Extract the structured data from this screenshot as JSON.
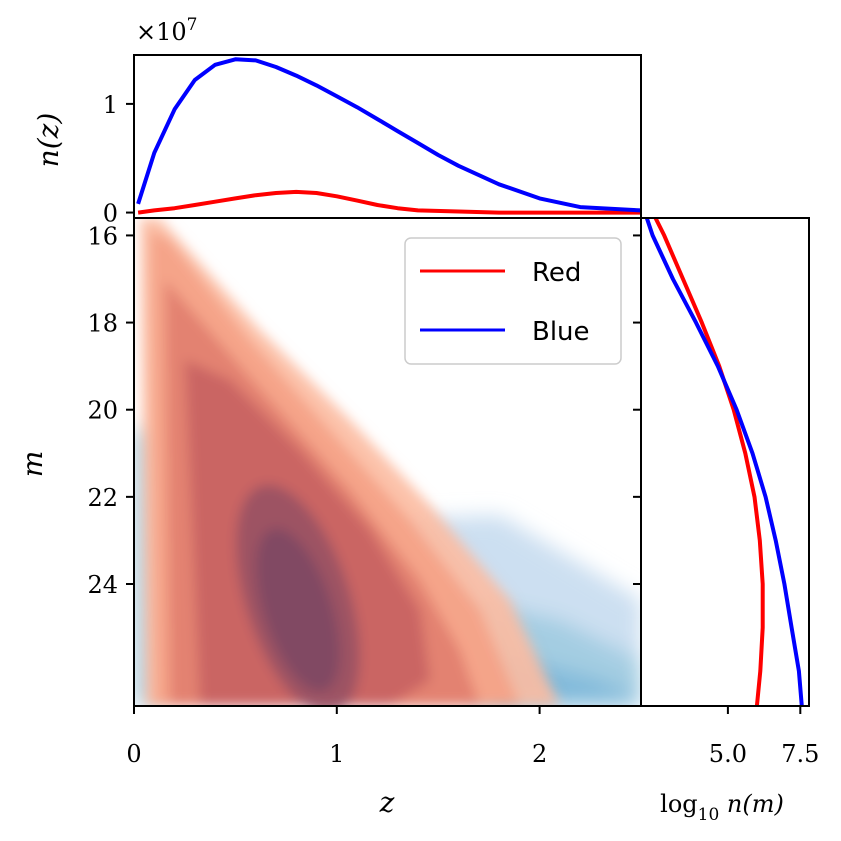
{
  "chart_data": [
    {
      "type": "line",
      "panel": "top-marginal",
      "xlabel": "",
      "ylabel": "n(z)",
      "offset_text": "×10^7",
      "offset_base": "×10",
      "offset_exp": "7",
      "xlim": [
        0,
        2.5
      ],
      "ylim": [
        -0.05,
        1.45
      ],
      "yscale_factor": 10000000,
      "yticks": [
        {
          "value": 0,
          "label": "0"
        },
        {
          "value": 1,
          "label": "1"
        }
      ],
      "series": [
        {
          "name": "Red",
          "color": "#ff0000",
          "x": [
            0.02,
            0.1,
            0.2,
            0.3,
            0.4,
            0.5,
            0.6,
            0.7,
            0.8,
            0.9,
            1.0,
            1.1,
            1.2,
            1.3,
            1.4,
            1.6,
            1.8,
            2.0,
            2.2,
            2.5
          ],
          "y": [
            0.0,
            0.02,
            0.04,
            0.07,
            0.1,
            0.13,
            0.16,
            0.18,
            0.19,
            0.18,
            0.15,
            0.11,
            0.07,
            0.04,
            0.02,
            0.01,
            0.0,
            0.0,
            0.0,
            0.0
          ]
        },
        {
          "name": "Blue",
          "color": "#0000ff",
          "x": [
            0.02,
            0.1,
            0.2,
            0.3,
            0.4,
            0.5,
            0.6,
            0.7,
            0.8,
            0.9,
            1.0,
            1.1,
            1.2,
            1.3,
            1.4,
            1.5,
            1.6,
            1.8,
            2.0,
            2.2,
            2.5
          ],
          "y": [
            0.08,
            0.55,
            0.95,
            1.22,
            1.36,
            1.41,
            1.4,
            1.34,
            1.26,
            1.17,
            1.07,
            0.97,
            0.86,
            0.75,
            0.64,
            0.53,
            0.43,
            0.26,
            0.13,
            0.05,
            0.02
          ]
        }
      ]
    },
    {
      "type": "heatmap",
      "panel": "main-contour",
      "xlabel": "z",
      "ylabel": "m",
      "xlim": [
        0,
        2.5
      ],
      "ylim": [
        26.8,
        15.6
      ],
      "xticks": [
        {
          "value": 0,
          "label": "0"
        },
        {
          "value": 1,
          "label": "1"
        },
        {
          "value": 2,
          "label": "2"
        }
      ],
      "yticks": [
        {
          "value": 16,
          "label": "16"
        },
        {
          "value": 18,
          "label": "18"
        },
        {
          "value": 20,
          "label": "20"
        },
        {
          "value": 22,
          "label": "22"
        },
        {
          "value": 24,
          "label": "24"
        }
      ],
      "legend": {
        "placement": "top-right",
        "entries": [
          {
            "name": "Red",
            "color": "#ff0000"
          },
          {
            "name": "Blue",
            "color": "#0000ff"
          }
        ]
      },
      "series": [
        {
          "name": "Red",
          "colormap": "Reds",
          "color": "#b2182b",
          "peak": {
            "z": 0.8,
            "m": 23.5
          }
        },
        {
          "name": "Blue",
          "colormap": "Blues",
          "color": "#5b9ac9",
          "peak": {
            "z": 1.5,
            "m": 24.2
          }
        }
      ]
    },
    {
      "type": "line",
      "panel": "right-marginal",
      "xlabel": "log10 n(m)",
      "ylabel": "",
      "xlim": [
        2.0,
        7.8
      ],
      "ylim": [
        26.8,
        15.6
      ],
      "xticks": [
        {
          "value": 5.0,
          "label": "5.0"
        },
        {
          "value": 7.5,
          "label": "7.5"
        }
      ],
      "series": [
        {
          "name": "Red",
          "color": "#ff0000",
          "m": [
            15.6,
            16.0,
            17.0,
            18.0,
            19.0,
            20.0,
            21.0,
            22.0,
            23.0,
            24.0,
            25.0,
            26.0,
            26.8
          ],
          "values": [
            2.5,
            2.8,
            3.45,
            4.1,
            4.7,
            5.2,
            5.6,
            5.92,
            6.1,
            6.2,
            6.2,
            6.12,
            6.0
          ]
        },
        {
          "name": "Blue",
          "color": "#0000ff",
          "m": [
            15.6,
            16.0,
            17.0,
            18.0,
            19.0,
            20.0,
            21.0,
            22.0,
            23.0,
            24.0,
            25.0,
            26.0,
            26.8
          ],
          "values": [
            2.2,
            2.4,
            3.1,
            3.9,
            4.65,
            5.3,
            5.85,
            6.3,
            6.65,
            6.95,
            7.2,
            7.45,
            7.55
          ]
        }
      ]
    }
  ]
}
